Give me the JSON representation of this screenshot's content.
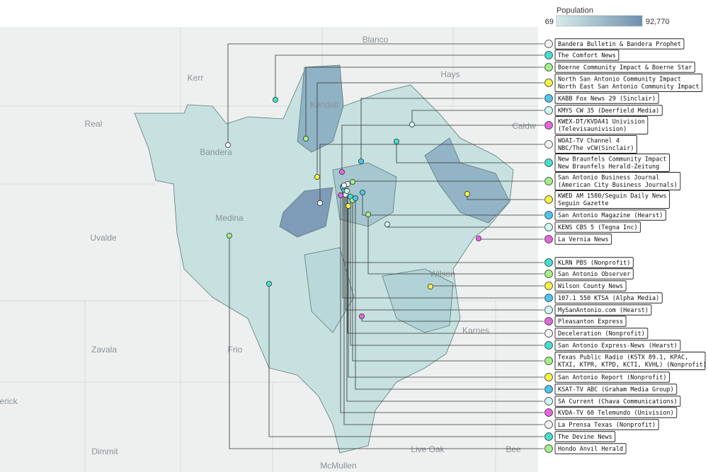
{
  "legend": {
    "title": "Population",
    "min_label": "69",
    "max_label": "92,770"
  },
  "map_labels": [
    "Blanco",
    "Kerr",
    "Hays",
    "Real",
    "Bandera",
    "Kendall",
    "Caldw",
    "Uvalde",
    "Medina",
    "Wilson",
    "Karnes",
    "Zavala",
    "Frio",
    "erick",
    "Dimmit",
    "Live Oak",
    "Bee",
    "McMullen"
  ],
  "outlets": [
    {
      "lines": [
        "Bandera Bulletin & Bandera Prophet"
      ],
      "color": "#f2f2f2"
    },
    {
      "lines": [
        "The Comfort News"
      ],
      "color": "#45e0cf"
    },
    {
      "lines": [
        "Boerne Community Impact & Boerne Star"
      ],
      "color": "#a4ef86"
    },
    {
      "lines": [
        "North San Antonio Community Impact",
        "North East San Antonio Community Impact"
      ],
      "color": "#f3f345"
    },
    {
      "lines": [
        "KABB Fox News 29 (Sinclair)"
      ],
      "color": "#4cc6ef"
    },
    {
      "lines": [
        "KMYS CW 35 (Deerfield Media)"
      ],
      "color": "#d2f6f6"
    },
    {
      "lines": [
        "KWEX-DT/KVDA41 Univision",
        "(Televisaunivision)"
      ],
      "color": "#e665e0"
    },
    {
      "lines": [
        "WOAI-TV Channel 4",
        "NBC/The vCW(Sinclair)"
      ],
      "color": "#f2f2f2"
    },
    {
      "lines": [
        "New Braunfels Community Impact",
        "New Braunfels Herald-Zeitung"
      ],
      "color": "#45e0cf"
    },
    {
      "lines": [
        "San Antonio Business Journal",
        "(American City Business Journals)"
      ],
      "color": "#a4ef86"
    },
    {
      "lines": [
        "KWED AM 1580/Seguin Daily News",
        "Seguin Gazette"
      ],
      "color": "#f3f345"
    },
    {
      "lines": [
        "San Antonio Magazine (Hearst)"
      ],
      "color": "#4cc6ef"
    },
    {
      "lines": [
        "KENS CBS 5 (Tegna Inc)"
      ],
      "color": "#d2f6f6"
    },
    {
      "lines": [
        "La Vernia News"
      ],
      "color": "#e665e0"
    },
    {
      "lines": [
        "KLRN PBS (Nonprofit)"
      ],
      "color": "#45e0cf"
    },
    {
      "lines": [
        "San Antonio Observer"
      ],
      "color": "#a4ef86"
    },
    {
      "lines": [
        "Wilson County News"
      ],
      "color": "#f3f345"
    },
    {
      "lines": [
        "107.1 550 KTSA (Alpha Media)"
      ],
      "color": "#4cc6ef"
    },
    {
      "lines": [
        "MySanAntonio.com (Hearst)"
      ],
      "color": "#d2f6f6"
    },
    {
      "lines": [
        "Pleasanton Express"
      ],
      "color": "#e665e0"
    },
    {
      "lines": [
        "Deceleration (Nonprofit)"
      ],
      "color": "#f2f2f2"
    },
    {
      "lines": [
        "San Antonio Express-News (Hearst)"
      ],
      "color": "#45e0cf"
    },
    {
      "lines": [
        "Texas Public Radio (KSTX 89.1, KPAC,",
        "KTXI, KTPR, KTPD, KCTI, KVHL) (Nonprofit)"
      ],
      "color": "#a4ef86"
    },
    {
      "lines": [
        "San Antonio Report (Nonprofit)"
      ],
      "color": "#f3f345"
    },
    {
      "lines": [
        "KSAT-TV ABC (Graham Media Group)"
      ],
      "color": "#4cc6ef"
    },
    {
      "lines": [
        "SA Current (Chava Communications)"
      ],
      "color": "#d2f6f6"
    },
    {
      "lines": [
        "KVDA-TV 60 Telemundo (Univision)"
      ],
      "color": "#e665e0"
    },
    {
      "lines": [
        "La Prensa Texas (Nonprofit)"
      ],
      "color": "#f2f2f2"
    },
    {
      "lines": [
        "The Devine News"
      ],
      "color": "#45e0cf"
    },
    {
      "lines": [
        "Hondo Anvil Herald"
      ],
      "color": "#a4ef86"
    }
  ]
}
